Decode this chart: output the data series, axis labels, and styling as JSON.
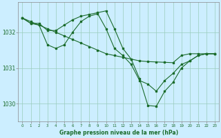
{
  "title": "Graphe pression niveau de la mer (hPa)",
  "background_color": "#cceeff",
  "grid_color": "#99ccbb",
  "line_color": "#1a6b2a",
  "x_labels": [
    "0",
    "1",
    "2",
    "3",
    "4",
    "5",
    "6",
    "7",
    "8",
    "9",
    "10",
    "11",
    "12",
    "13",
    "14",
    "15",
    "16",
    "17",
    "18",
    "19",
    "20",
    "21",
    "22",
    "23"
  ],
  "xlim": [
    -0.5,
    23.5
  ],
  "ylim": [
    1029.5,
    1032.85
  ],
  "yticks": [
    1030,
    1031,
    1032
  ],
  "series": [
    {
      "x": [
        0,
        1,
        2,
        3,
        4,
        5,
        6,
        7,
        8,
        9,
        10,
        11,
        12,
        13,
        14,
        15,
        16,
        17,
        18,
        19,
        20,
        21,
        22,
        23
      ],
      "y": [
        1032.4,
        1032.25,
        1032.25,
        1032.05,
        1032.05,
        1032.2,
        1032.35,
        1032.45,
        1032.5,
        1032.55,
        1032.6,
        1032.1,
        1031.55,
        1031.25,
        1030.7,
        1029.95,
        1029.93,
        1030.35,
        1030.6,
        1031.0,
        1031.2,
        1031.35,
        1031.4,
        1031.4
      ]
    },
    {
      "x": [
        0,
        1,
        2,
        3,
        4,
        5,
        6,
        7,
        8,
        9,
        10,
        11,
        12,
        13,
        14,
        15,
        16,
        17,
        18,
        19,
        20,
        21,
        22,
        23
      ],
      "y": [
        1032.4,
        1032.3,
        1032.2,
        1032.1,
        1032.0,
        1031.9,
        1031.8,
        1031.7,
        1031.6,
        1031.5,
        1031.4,
        1031.35,
        1031.3,
        1031.25,
        1031.2,
        1031.18,
        1031.17,
        1031.16,
        1031.15,
        1031.35,
        1031.4,
        1031.4,
        1031.4,
        1031.4
      ]
    },
    {
      "x": [
        0,
        1,
        2,
        3,
        4,
        5,
        6,
        7,
        8,
        9,
        10,
        11,
        12,
        13,
        14,
        15,
        16,
        17,
        18,
        19,
        20,
        21,
        22,
        23
      ],
      "y": [
        1032.4,
        1032.25,
        1032.2,
        1031.65,
        1031.55,
        1031.65,
        1032.0,
        1032.3,
        1032.45,
        1032.52,
        1032.1,
        1031.55,
        1031.35,
        1031.1,
        1030.65,
        1030.55,
        1030.35,
        1030.65,
        1030.85,
        1031.1,
        1031.2,
        1031.35,
        1031.4,
        1031.4
      ]
    }
  ]
}
